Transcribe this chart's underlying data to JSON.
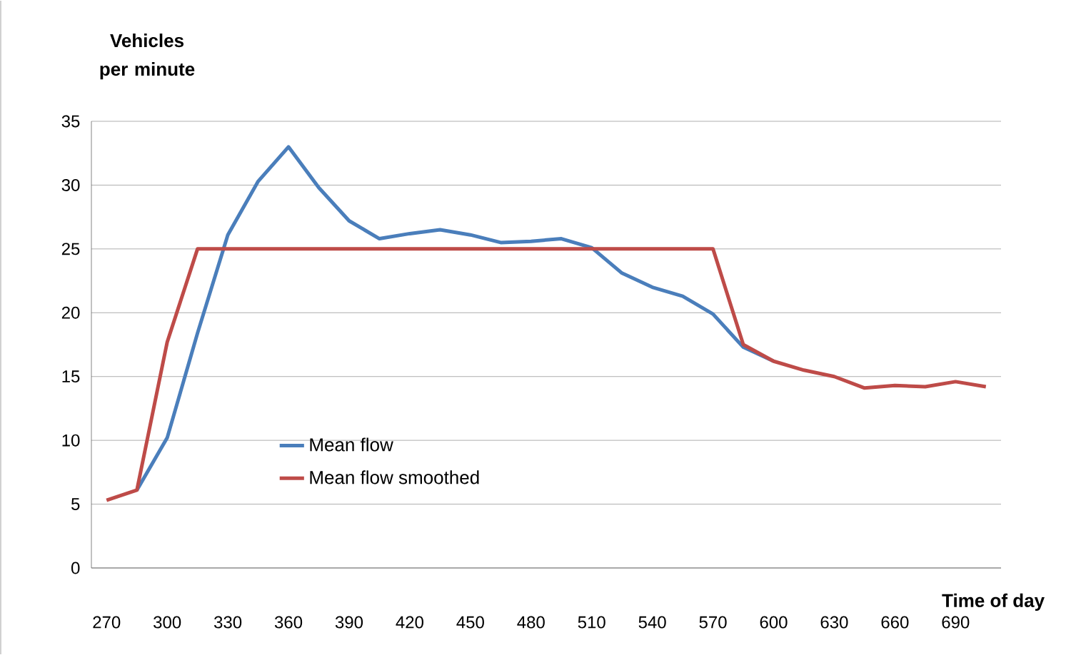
{
  "chart_data": {
    "type": "line",
    "xlabel": "Time of day",
    "ylabel": "Vehicles per minute",
    "categories": [
      "270",
      null,
      "300",
      null,
      "330",
      null,
      "360",
      null,
      "390",
      null,
      "420",
      null,
      "450",
      null,
      "480",
      null,
      "510",
      null,
      "540",
      null,
      "570",
      null,
      "600",
      null,
      "630",
      null,
      "660",
      null,
      "690",
      null
    ],
    "series": [
      {
        "name": "Mean flow",
        "color": "#4a7ebb",
        "values": [
          null,
          6.1,
          10.2,
          18.4,
          26.1,
          30.3,
          33.0,
          29.8,
          27.2,
          25.8,
          26.2,
          26.5,
          26.1,
          25.5,
          25.6,
          25.8,
          25.1,
          23.1,
          22.0,
          21.3,
          19.9,
          17.3,
          16.2,
          null,
          null,
          null,
          null,
          null,
          null,
          null
        ]
      },
      {
        "name": "Mean flow smoothed",
        "color": "#be4b48",
        "values": [
          5.3,
          6.1,
          17.7,
          25,
          25,
          25,
          25,
          25,
          25,
          25,
          25,
          25,
          25,
          25,
          25,
          25,
          25,
          25,
          25,
          25,
          25,
          17.5,
          16.2,
          15.5,
          15.0,
          14.1,
          14.3,
          14.2,
          14.6,
          14.2
        ]
      }
    ],
    "ylim": [
      0,
      35
    ],
    "yticks": [
      0,
      5,
      10,
      15,
      20,
      25,
      30,
      35
    ],
    "grid": "y",
    "legend": "bottom",
    "marker": "none",
    "line_style": "solid"
  }
}
